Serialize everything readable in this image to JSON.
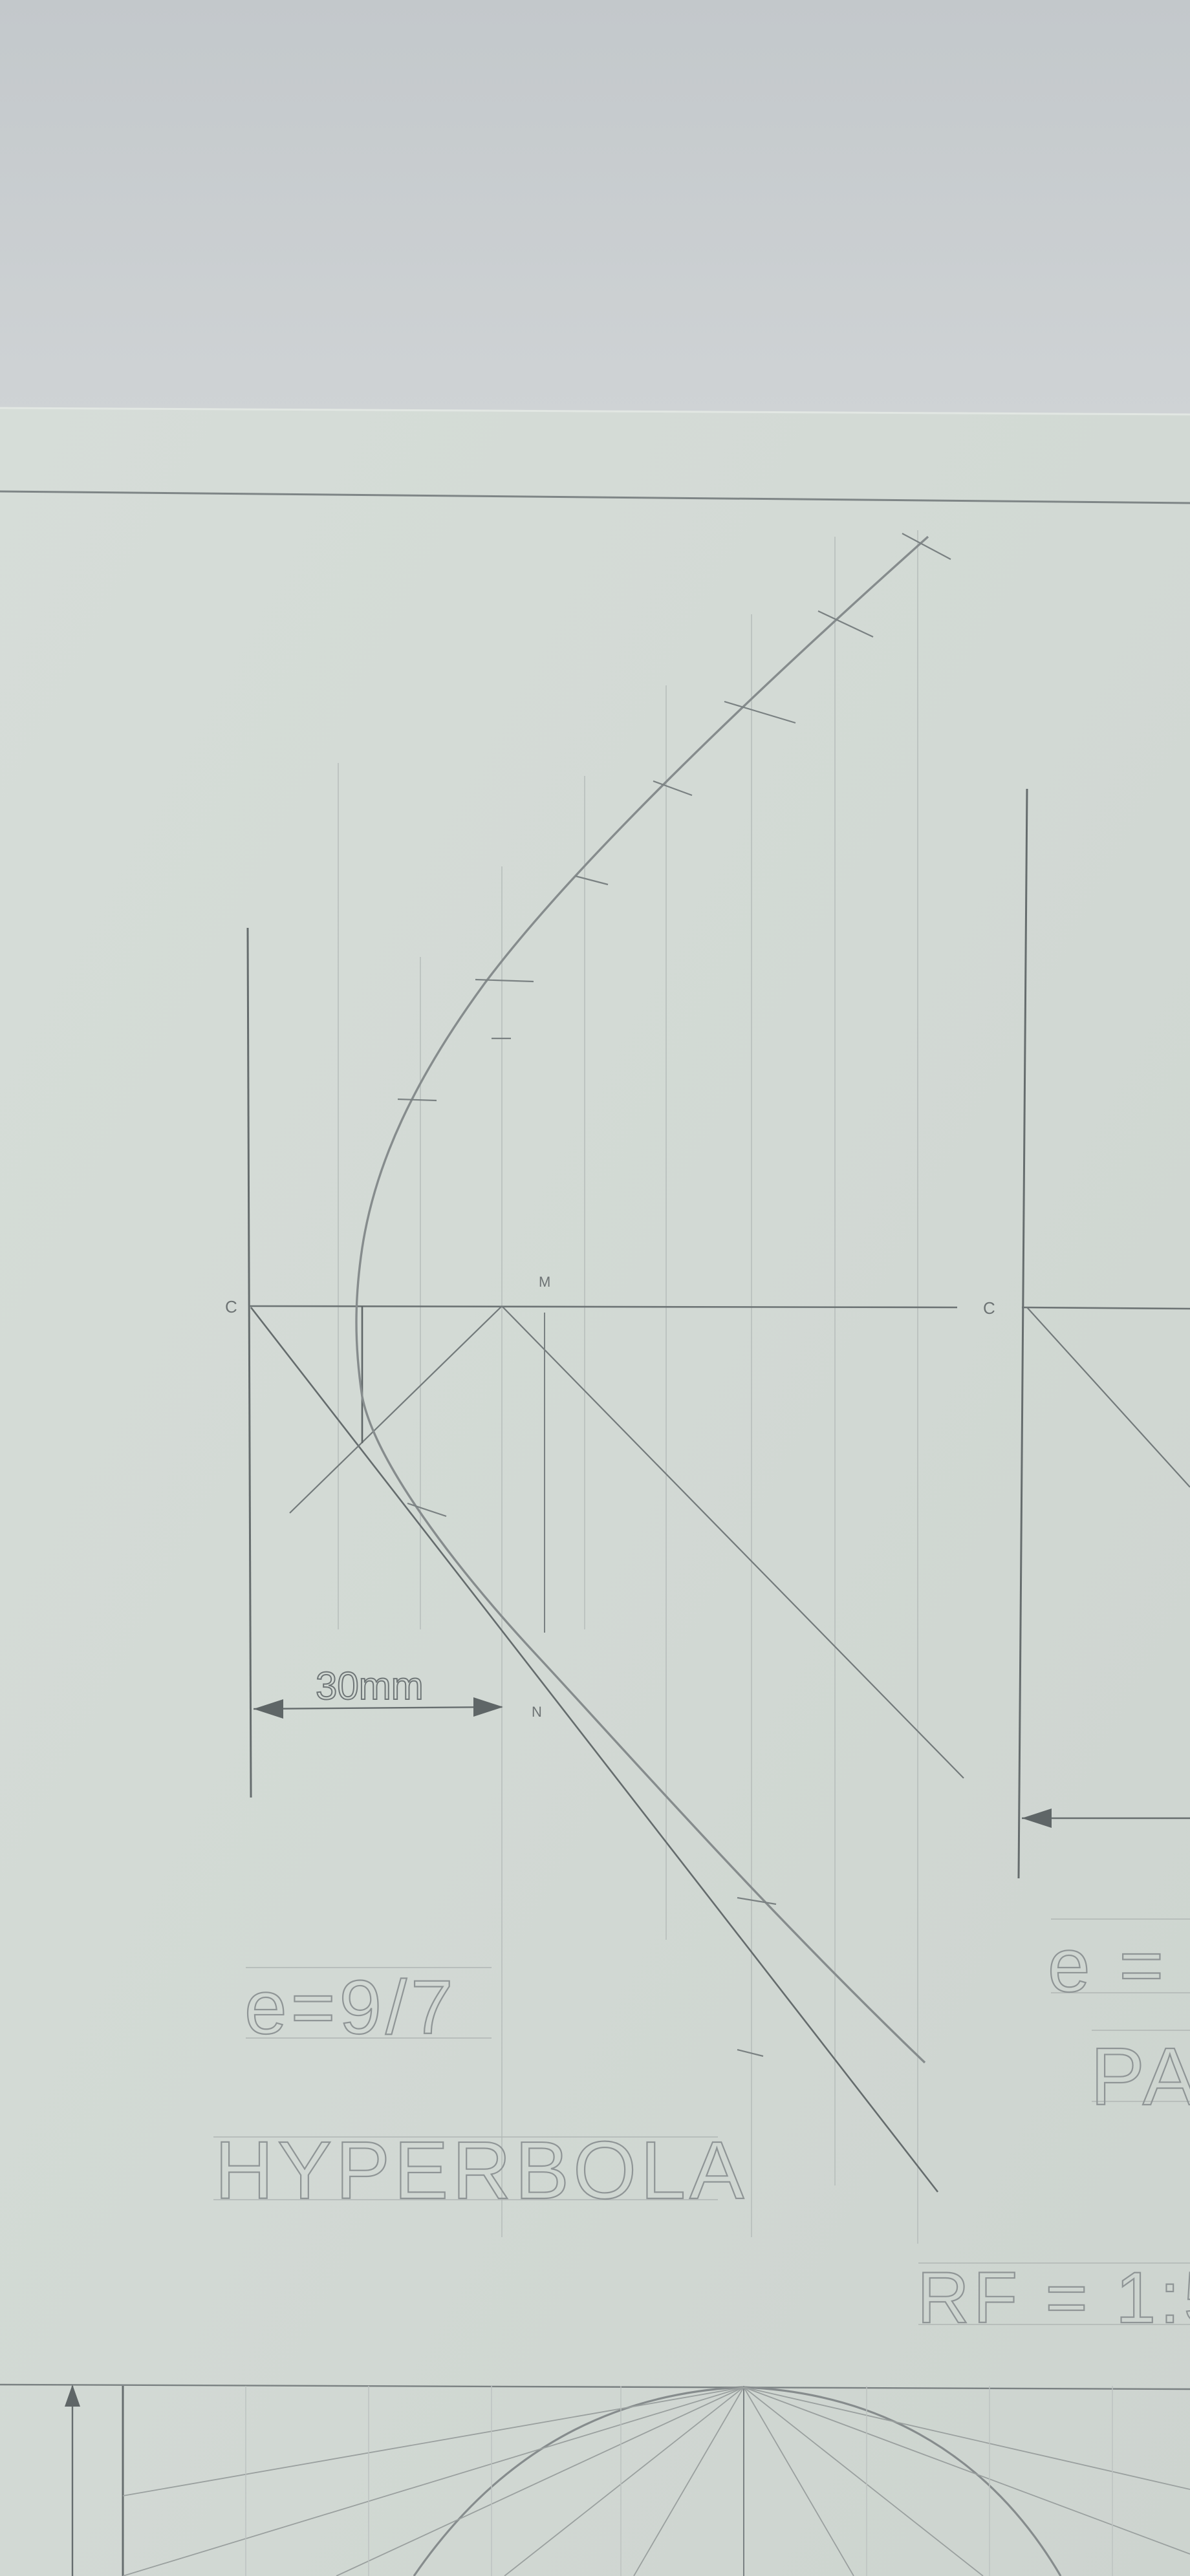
{
  "colors": {
    "background_top": "#c8cccf",
    "paper": "#d3dad5",
    "pencil_dark": "#5f6667",
    "pencil_mid": "#8a9091",
    "pencil_light": "#b6bcba"
  },
  "labels": {
    "point_c_left": "C",
    "point_m": "M",
    "point_c_right": "C",
    "point_n": "N",
    "dimension": "30mm",
    "eccentricity_left": "e=9/7",
    "curve_name_left": "HYPERBOLA",
    "eccentricity_right_partial": "e =",
    "curve_name_right_partial": "PA",
    "scale_partial": "RF = 1:5"
  }
}
